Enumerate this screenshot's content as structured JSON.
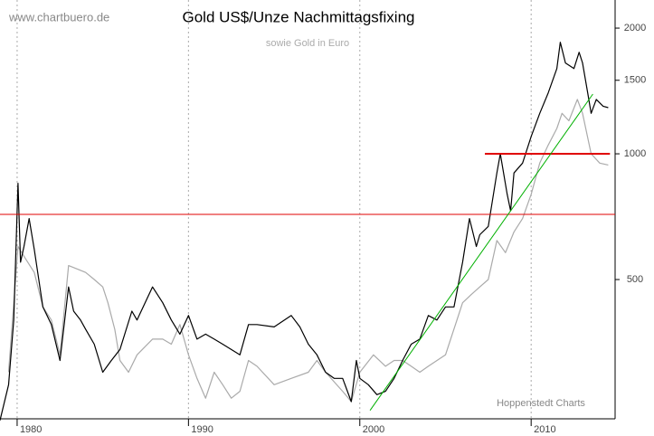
{
  "chart_data": {
    "type": "line",
    "title": "Gold US$/Unze Nachmittagsfixing",
    "subtitle": "sowie Gold in Euro",
    "source": "www.chartbuero.de",
    "credit": "Hoppenstedt Charts",
    "log_y": true,
    "grid": true,
    "xlim": [
      1979.0,
      2014.9
    ],
    "xticks": [
      1980,
      1990,
      2000,
      2010
    ],
    "ylim": [
      232,
      2335
    ],
    "yticks": [
      500,
      1000,
      1500,
      2000
    ],
    "series": [
      {
        "color": "#000000",
        "x": [
          1979.0,
          1979.5,
          1979.8,
          1980.05,
          1980.2,
          1980.4,
          1980.7,
          1981.0,
          1981.5,
          1982.0,
          1982.5,
          1983.0,
          1983.3,
          1983.7,
          1984.0,
          1984.5,
          1985.0,
          1985.5,
          1986.0,
          1986.7,
          1987.0,
          1987.9,
          1988.5,
          1989.0,
          1989.5,
          1990.0,
          1990.5,
          1991.0,
          1991.5,
          1992.0,
          1992.5,
          1993.0,
          1993.5,
          1994.0,
          1995.0,
          1996.0,
          1996.5,
          1997.0,
          1997.5,
          1998.0,
          1998.5,
          1999.0,
          1999.5,
          1999.8,
          2000.0,
          2000.5,
          2001.0,
          2001.5,
          2002.0,
          2002.5,
          2003.0,
          2003.5,
          2004.0,
          2004.5,
          2005.0,
          2005.5,
          2006.0,
          2006.4,
          2006.8,
          2007.0,
          2007.5,
          2008.0,
          2008.2,
          2008.6,
          2008.8,
          2009.0,
          2009.5,
          2010.0,
          2010.5,
          2011.0,
          2011.5,
          2011.7,
          2012.0,
          2012.5,
          2012.8,
          2013.0,
          2013.3,
          2013.5,
          2013.8,
          2014.2,
          2014.5
        ],
        "values": [
          230,
          280,
          400,
          850,
          550,
          600,
          700,
          590,
          430,
          390,
          320,
          480,
          420,
          400,
          380,
          350,
          300,
          320,
          340,
          420,
          400,
          480,
          440,
          400,
          370,
          410,
          360,
          370,
          360,
          350,
          340,
          330,
          390,
          390,
          385,
          410,
          385,
          350,
          330,
          300,
          290,
          290,
          255,
          320,
          290,
          280,
          265,
          270,
          290,
          320,
          350,
          360,
          410,
          400,
          430,
          430,
          550,
          700,
          600,
          640,
          670,
          900,
          1000,
          800,
          730,
          900,
          950,
          1100,
          1250,
          1400,
          1600,
          1850,
          1650,
          1600,
          1750,
          1650,
          1400,
          1250,
          1350,
          1300,
          1290
        ]
      },
      {
        "color": "#aaaaaa",
        "x": [
          1979.5,
          1980.05,
          1980.5,
          1981.0,
          1981.5,
          1982.0,
          1982.5,
          1983.0,
          1983.5,
          1984.0,
          1984.5,
          1985.0,
          1985.3,
          1985.7,
          1986.0,
          1986.5,
          1987.0,
          1987.9,
          1988.5,
          1989.0,
          1989.5,
          1990.0,
          1990.5,
          1991.0,
          1991.5,
          1992.0,
          1992.5,
          1993.0,
          1993.5,
          1994.0,
          1995.0,
          1996.0,
          1997.0,
          1997.5,
          1998.0,
          1999.0,
          1999.5,
          2000.0,
          2000.8,
          2001.5,
          2002.0,
          2002.5,
          2003.0,
          2003.5,
          2004.0,
          2005.0,
          2006.0,
          2006.5,
          2007.0,
          2007.5,
          2008.0,
          2008.5,
          2009.0,
          2009.5,
          2010.0,
          2010.5,
          2011.0,
          2011.5,
          2011.8,
          2012.2,
          2012.7,
          2013.0,
          2013.5,
          2014.0,
          2014.5
        ],
        "values": [
          300,
          600,
          560,
          520,
          430,
          400,
          330,
          540,
          530,
          520,
          500,
          480,
          440,
          380,
          320,
          300,
          330,
          360,
          360,
          350,
          390,
          330,
          290,
          260,
          300,
          280,
          260,
          270,
          320,
          310,
          280,
          290,
          300,
          320,
          300,
          270,
          255,
          300,
          330,
          310,
          320,
          320,
          310,
          300,
          310,
          330,
          440,
          460,
          480,
          500,
          620,
          580,
          650,
          700,
          800,
          950,
          1050,
          1150,
          1250,
          1200,
          1350,
          1250,
          1000,
          950,
          940
        ]
      }
    ],
    "reference_lines": [
      {
        "color": "#e00000",
        "linewidth": 2,
        "x": [
          2007.3,
          2014.6
        ],
        "values": [
          1000,
          1000
        ]
      },
      {
        "color": "#e00000",
        "linewidth": 1,
        "x": [
          1979.0,
          2014.9
        ],
        "values": [
          716,
          716
        ]
      },
      {
        "color": "#00b000",
        "linewidth": 1,
        "x": [
          2000.6,
          2013.6
        ],
        "values": [
          243,
          1390
        ]
      }
    ]
  }
}
